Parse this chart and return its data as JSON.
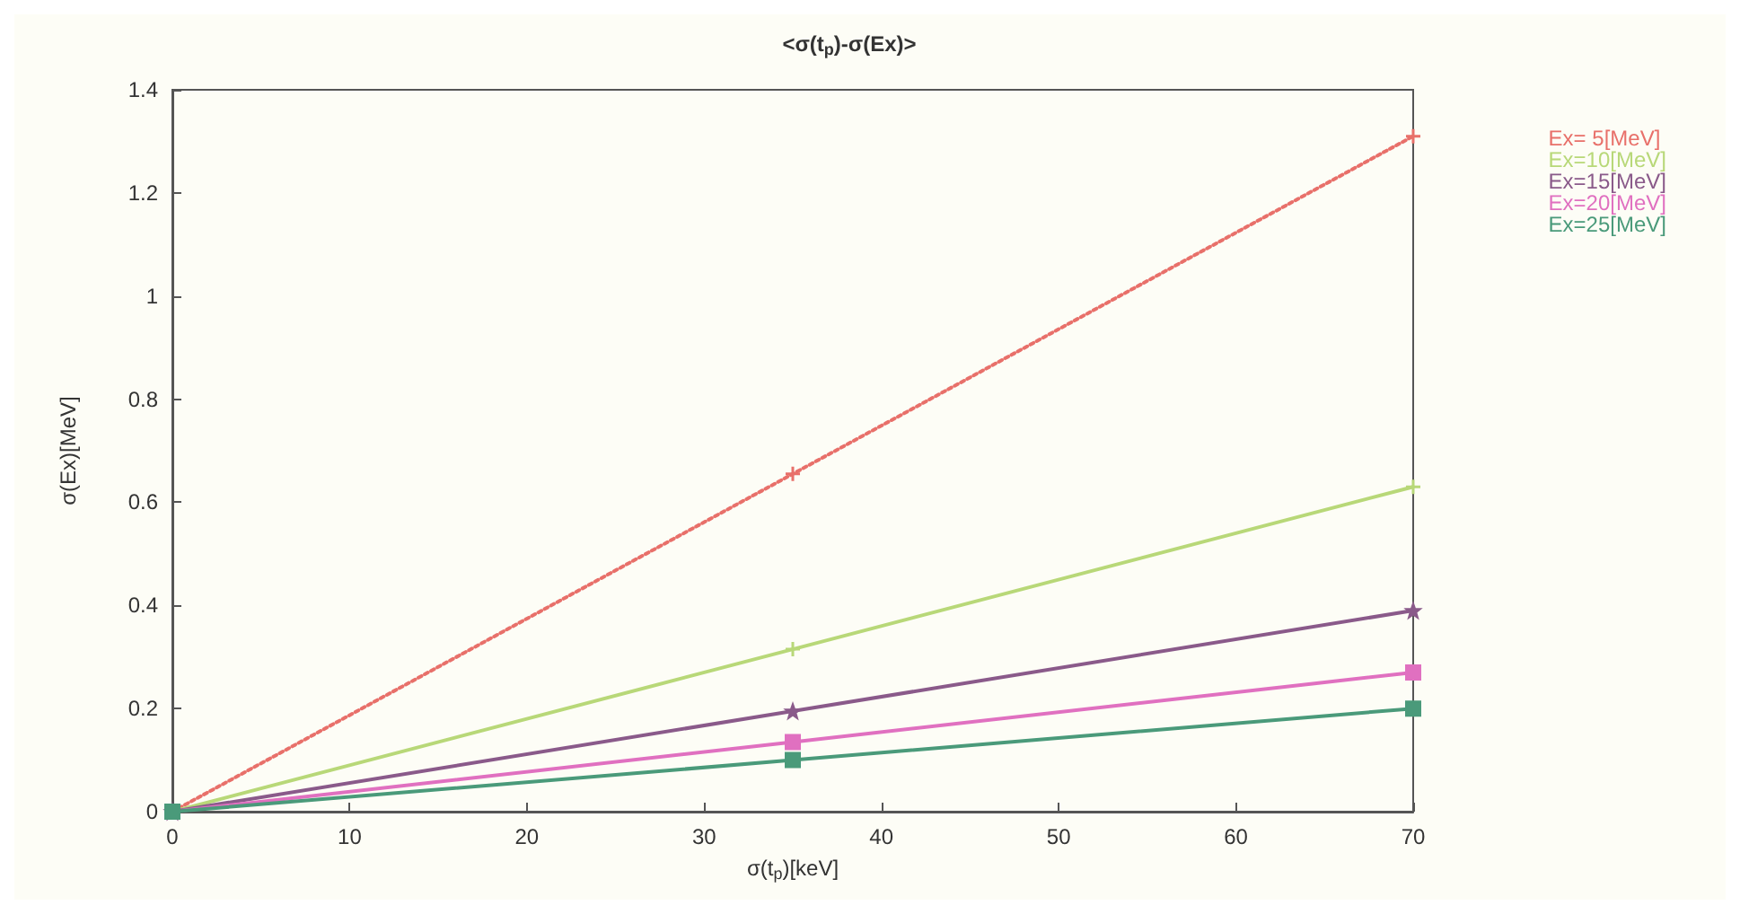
{
  "chart_data": {
    "type": "line",
    "title": "<σ(t$_{p}$)-σ(Ex)>",
    "xlabel": "σ(t$_{p}$)[keV]",
    "ylabel": "σ(Ex)[MeV]",
    "xlim": [
      0,
      70
    ],
    "xticks": [
      0,
      10,
      20,
      30,
      40,
      50,
      60,
      70
    ],
    "ylim": [
      0,
      1.4
    ],
    "yticks": [
      0,
      0.2,
      0.4,
      0.6,
      0.8,
      1,
      1.2,
      1.4
    ],
    "grid": false,
    "legend": "top right",
    "x": [
      0,
      35,
      70
    ],
    "series": [
      {
        "name": "Ex= 5[MeV]",
        "color": "#e8706a",
        "values": [
          0,
          0.655,
          1.31
        ],
        "marker": "cross",
        "line_style": "dotted"
      },
      {
        "name": "Ex=10[MeV]",
        "color": "#b8d878",
        "values": [
          0,
          0.315,
          0.63
        ],
        "marker": "cross",
        "line_style": "solid"
      },
      {
        "name": "Ex=15[MeV]",
        "color": "#8a5a8a",
        "values": [
          0,
          0.195,
          0.39
        ],
        "marker": "star",
        "line_style": "solid"
      },
      {
        "name": "Ex=20[MeV]",
        "color": "#e070c0",
        "values": [
          0,
          0.135,
          0.27
        ],
        "marker": "square",
        "line_style": "solid"
      },
      {
        "name": "Ex=25[MeV]",
        "color": "#4a9a7a",
        "values": [
          0,
          0.1,
          0.2
        ],
        "marker": "square",
        "line_style": "solid"
      }
    ]
  }
}
